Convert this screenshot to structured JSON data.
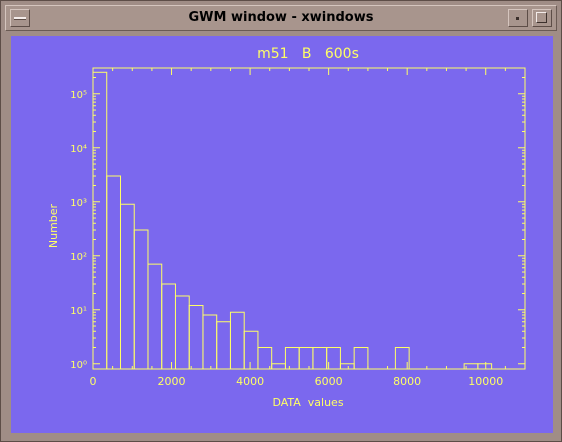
{
  "window": {
    "title": "GWM window - xwindows",
    "menu_icon": "window-menu-icon",
    "minimize_icon": "minimize-icon",
    "maximize_icon": "maximize-icon"
  },
  "colors": {
    "plot_background": "#7b68ee",
    "plot_foreground": "#ffff66"
  },
  "chart_data": {
    "type": "bar",
    "subtype": "histogram",
    "title": "m51   B   600s",
    "xlabel": "DATA  values",
    "ylabel": "Number",
    "xlim": [
      0,
      11000
    ],
    "ylim": [
      0.8,
      300000
    ],
    "y_scale": "log",
    "x_ticks": [
      0,
      2000,
      4000,
      6000,
      8000,
      10000
    ],
    "x_tick_labels": [
      "0",
      "2000",
      "4000",
      "6000",
      "8000",
      "10000"
    ],
    "y_tick_labels": [
      "10⁰",
      "10¹",
      "10²",
      "10³",
      "10⁴",
      "10⁵"
    ],
    "bin_width": 350,
    "bins": [
      {
        "x": 0,
        "count": 250000
      },
      {
        "x": 350,
        "count": 3000
      },
      {
        "x": 700,
        "count": 900
      },
      {
        "x": 1050,
        "count": 300
      },
      {
        "x": 1400,
        "count": 70
      },
      {
        "x": 1750,
        "count": 30
      },
      {
        "x": 2100,
        "count": 18
      },
      {
        "x": 2450,
        "count": 12
      },
      {
        "x": 2800,
        "count": 8
      },
      {
        "x": 3150,
        "count": 6
      },
      {
        "x": 3500,
        "count": 9
      },
      {
        "x": 3850,
        "count": 4
      },
      {
        "x": 4200,
        "count": 2
      },
      {
        "x": 4550,
        "count": 1
      },
      {
        "x": 4900,
        "count": 2
      },
      {
        "x": 5250,
        "count": 2
      },
      {
        "x": 5600,
        "count": 2
      },
      {
        "x": 5950,
        "count": 2
      },
      {
        "x": 6300,
        "count": 1
      },
      {
        "x": 6650,
        "count": 2
      },
      {
        "x": 7000,
        "count": 0
      },
      {
        "x": 7350,
        "count": 0
      },
      {
        "x": 7700,
        "count": 2
      },
      {
        "x": 8050,
        "count": 0
      },
      {
        "x": 8400,
        "count": 0
      },
      {
        "x": 8750,
        "count": 0
      },
      {
        "x": 9100,
        "count": 0
      },
      {
        "x": 9450,
        "count": 1
      },
      {
        "x": 9800,
        "count": 1
      },
      {
        "x": 10150,
        "count": 0
      }
    ],
    "grid": false
  }
}
